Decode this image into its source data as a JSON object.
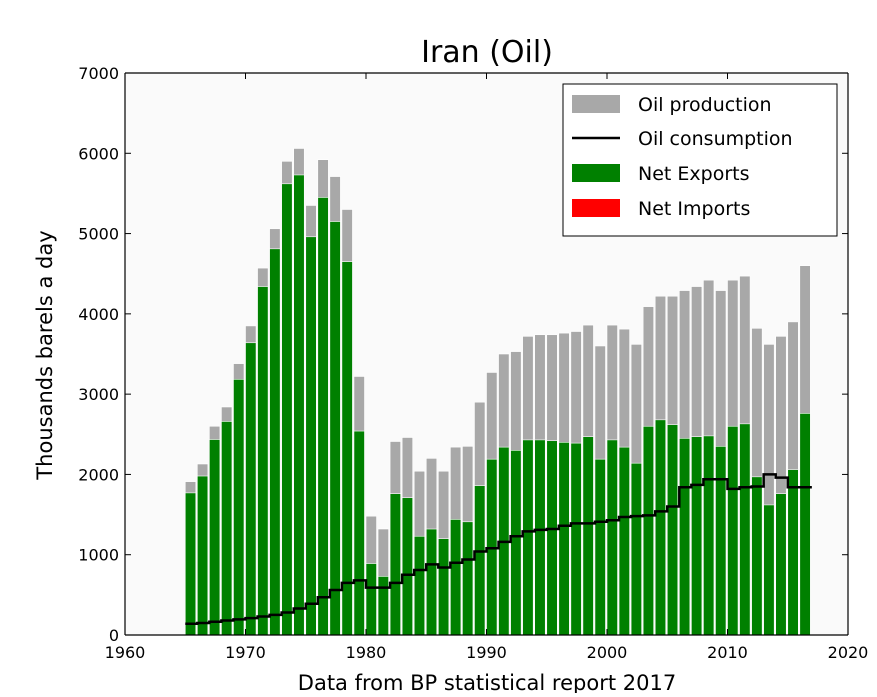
{
  "chart_data": {
    "type": "bar",
    "title": "Iran (Oil)",
    "xlabel": "Data from BP statistical report 2017",
    "ylabel": "Thousands barels a day",
    "xlim": [
      1960,
      2020
    ],
    "ylim": [
      0,
      7000
    ],
    "x_ticks": [
      "1960",
      "1970",
      "1980",
      "1990",
      "2000",
      "2010",
      "2020"
    ],
    "y_ticks": [
      "0",
      "1000",
      "2000",
      "3000",
      "4000",
      "5000",
      "6000",
      "7000"
    ],
    "grid": false,
    "legend_position": "top-right",
    "colors": {
      "production": "#a8a8a8",
      "consumption": "#000000",
      "net_exports": "#008000",
      "net_imports": "#ff0000",
      "plot_background": "#fafafa"
    },
    "legend": [
      {
        "label": "Oil production",
        "key": "production"
      },
      {
        "label": "Oil consumption",
        "key": "consumption"
      },
      {
        "label": "Net Exports",
        "key": "net_exports"
      },
      {
        "label": "Net Imports",
        "key": "net_imports"
      }
    ],
    "x": [
      1965,
      1966,
      1967,
      1968,
      1969,
      1970,
      1971,
      1972,
      1973,
      1974,
      1975,
      1976,
      1977,
      1978,
      1979,
      1980,
      1981,
      1982,
      1983,
      1984,
      1985,
      1986,
      1987,
      1988,
      1989,
      1990,
      1991,
      1992,
      1993,
      1994,
      1995,
      1996,
      1997,
      1998,
      1999,
      2000,
      2001,
      2002,
      2003,
      2004,
      2005,
      2006,
      2007,
      2008,
      2009,
      2010,
      2011,
      2012,
      2013,
      2014,
      2015,
      2016
    ],
    "series": [
      {
        "name": "Oil production",
        "key": "production",
        "values": [
          1910,
          2130,
          2600,
          2840,
          3380,
          3850,
          4570,
          5060,
          5900,
          6060,
          5350,
          5920,
          5710,
          5300,
          3220,
          1480,
          1320,
          2410,
          2460,
          2040,
          2200,
          2040,
          2340,
          2350,
          2900,
          3270,
          3500,
          3530,
          3720,
          3740,
          3740,
          3760,
          3780,
          3860,
          3600,
          3860,
          3810,
          3620,
          4090,
          4220,
          4220,
          4290,
          4340,
          4420,
          4290,
          4420,
          4470,
          3820,
          3620,
          3720,
          3900,
          4600
        ]
      },
      {
        "name": "Oil consumption",
        "key": "consumption",
        "values": [
          140,
          150,
          165,
          180,
          195,
          210,
          230,
          250,
          280,
          330,
          390,
          470,
          560,
          650,
          680,
          590,
          590,
          650,
          750,
          810,
          880,
          840,
          900,
          940,
          1040,
          1080,
          1160,
          1230,
          1290,
          1310,
          1320,
          1360,
          1390,
          1390,
          1410,
          1430,
          1470,
          1480,
          1490,
          1540,
          1600,
          1840,
          1870,
          1940,
          1940,
          1820,
          1840,
          1850,
          2000,
          1960,
          1840,
          1840
        ]
      }
    ]
  }
}
